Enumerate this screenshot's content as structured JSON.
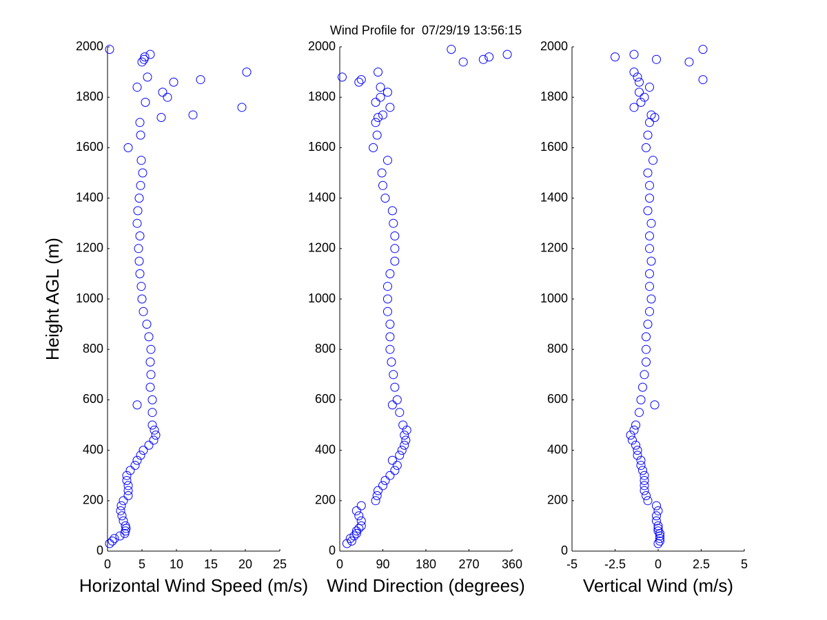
{
  "chart_data": [
    {
      "type": "scatter",
      "xlabel": "Horizontal Wind Speed (m/s)",
      "ylabel": "Height AGL (m)",
      "color": "#0000ff",
      "xlim": [
        0,
        25
      ],
      "xticks": [
        0,
        5,
        10,
        15,
        20,
        25
      ],
      "ylim": [
        0,
        2000
      ],
      "yticks": [
        0,
        200,
        400,
        600,
        800,
        1000,
        1200,
        1400,
        1600,
        1800,
        2000
      ],
      "x": [
        0.3,
        0.7,
        1.0,
        1.8,
        2.5,
        2.6,
        2.7,
        2.6,
        2.3,
        2.1,
        1.9,
        2.0,
        2.3,
        3.0,
        3.0,
        3.0,
        2.8,
        2.8,
        3.3,
        4.0,
        4.3,
        4.8,
        5.2,
        6.0,
        6.7,
        7.0,
        6.8,
        6.5,
        6.5,
        4.3,
        6.5,
        6.2,
        6.3,
        6.2,
        6.3,
        6.0,
        5.7,
        5.2,
        5.0,
        4.9,
        4.7,
        4.6,
        4.5,
        4.7,
        4.3,
        4.4,
        4.6,
        4.8,
        5.1,
        4.9,
        3.0,
        4.8,
        4.7,
        7.8,
        12.4,
        19.5,
        5.5,
        8.7,
        8.0,
        4.3,
        9.6,
        13.5,
        5.8,
        20.2,
        5.0,
        5.3,
        5.4,
        6.2,
        0.3
      ],
      "values": [
        30,
        40,
        50,
        60,
        70,
        80,
        90,
        100,
        120,
        140,
        160,
        180,
        200,
        220,
        240,
        260,
        280,
        300,
        320,
        340,
        360,
        380,
        400,
        420,
        440,
        460,
        480,
        500,
        550,
        580,
        600,
        650,
        700,
        750,
        800,
        850,
        900,
        950,
        1000,
        1050,
        1100,
        1150,
        1200,
        1250,
        1300,
        1350,
        1400,
        1450,
        1500,
        1550,
        1600,
        1650,
        1700,
        1720,
        1730,
        1760,
        1780,
        1800,
        1820,
        1840,
        1860,
        1870,
        1880,
        1900,
        1940,
        1950,
        1960,
        1970,
        1990
      ]
    },
    {
      "type": "scatter",
      "title": "Wind Profile for  07/29/19 13:56:15",
      "xlabel": "Wind Direction (degrees)",
      "color": "#0000ff",
      "xlim": [
        0,
        360
      ],
      "xticks": [
        0,
        90,
        180,
        270,
        360
      ],
      "ylim": [
        0,
        2000
      ],
      "yticks": [
        0,
        200,
        400,
        600,
        800,
        1000,
        1200,
        1400,
        1600,
        1800,
        2000
      ],
      "x": [
        15,
        25,
        22,
        30,
        35,
        35,
        40,
        45,
        45,
        40,
        35,
        45,
        75,
        78,
        80,
        90,
        95,
        105,
        115,
        120,
        110,
        125,
        130,
        135,
        138,
        135,
        140,
        132,
        125,
        110,
        120,
        115,
        112,
        108,
        105,
        105,
        105,
        100,
        100,
        100,
        105,
        115,
        115,
        115,
        112,
        110,
        95,
        90,
        88,
        100,
        70,
        78,
        75,
        80,
        90,
        105,
        75,
        85,
        100,
        85,
        40,
        45,
        5,
        80,
        258,
        300,
        312,
        350,
        233
      ],
      "values": [
        30,
        40,
        50,
        60,
        70,
        80,
        90,
        100,
        120,
        140,
        160,
        180,
        200,
        220,
        240,
        260,
        280,
        300,
        320,
        340,
        360,
        380,
        400,
        420,
        440,
        460,
        480,
        500,
        550,
        580,
        600,
        650,
        700,
        750,
        800,
        850,
        900,
        950,
        1000,
        1050,
        1100,
        1150,
        1200,
        1250,
        1300,
        1350,
        1400,
        1450,
        1500,
        1550,
        1600,
        1650,
        1700,
        1720,
        1730,
        1760,
        1780,
        1800,
        1820,
        1840,
        1860,
        1870,
        1880,
        1900,
        1940,
        1950,
        1960,
        1970,
        1990
      ]
    },
    {
      "type": "scatter",
      "xlabel": "Vertical Wind (m/s)",
      "color": "#0000ff",
      "xlim": [
        -5,
        5
      ],
      "xticks": [
        -5,
        -2.5,
        0,
        2.5,
        5
      ],
      "ylim": [
        0,
        2000
      ],
      "yticks": [
        0,
        200,
        400,
        600,
        800,
        1000,
        1200,
        1400,
        1600,
        1800,
        2000
      ],
      "x": [
        0,
        0.1,
        0.1,
        0.1,
        0.1,
        0,
        0,
        0,
        -0.1,
        -0.1,
        0,
        -0.1,
        -0.6,
        -0.7,
        -0.8,
        -0.8,
        -0.8,
        -0.8,
        -0.9,
        -1.0,
        -1.0,
        -1.2,
        -1.2,
        -1.3,
        -1.5,
        -1.6,
        -1.4,
        -1.3,
        -1.1,
        -0.2,
        -1.0,
        -0.9,
        -0.8,
        -0.7,
        -0.7,
        -0.7,
        -0.6,
        -0.5,
        -0.4,
        -0.5,
        -0.5,
        -0.4,
        -0.5,
        -0.5,
        -0.4,
        -0.6,
        -0.5,
        -0.5,
        -0.6,
        -0.3,
        -0.7,
        -0.6,
        -0.5,
        -0.2,
        -0.4,
        -1.4,
        -1.0,
        -0.8,
        -1.1,
        -0.5,
        -1.1,
        2.6,
        -1.2,
        -1.4,
        1.8,
        -0.1,
        -2.5,
        -1.4,
        2.6
      ],
      "values": [
        30,
        40,
        50,
        60,
        70,
        80,
        90,
        100,
        120,
        140,
        160,
        180,
        200,
        220,
        240,
        260,
        280,
        300,
        320,
        340,
        360,
        380,
        400,
        420,
        440,
        460,
        480,
        500,
        550,
        580,
        600,
        650,
        700,
        750,
        800,
        850,
        900,
        950,
        1000,
        1050,
        1100,
        1150,
        1200,
        1250,
        1300,
        1350,
        1400,
        1450,
        1500,
        1550,
        1600,
        1650,
        1700,
        1720,
        1730,
        1760,
        1780,
        1800,
        1820,
        1840,
        1860,
        1870,
        1880,
        1900,
        1940,
        1950,
        1960,
        1970,
        1990
      ]
    }
  ]
}
